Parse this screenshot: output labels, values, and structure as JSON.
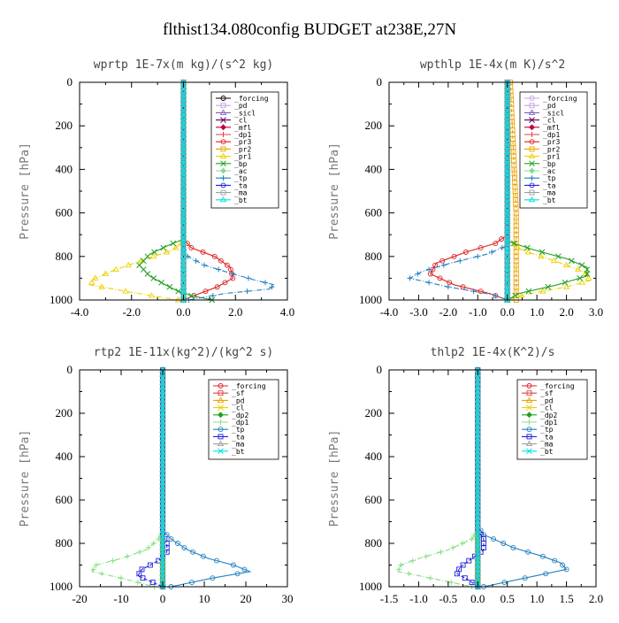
{
  "figure": {
    "title": "flthist134.080config  BUDGET at238E,27N"
  },
  "chart_data": [
    {
      "type": "line",
      "title": "wprtp  1E-7x(m kg)/(s^2 kg)",
      "ylabel": "Pressure [hPa]",
      "xlim": [
        -4.0,
        4.0
      ],
      "ylim": [
        1000,
        0
      ],
      "xticks": [
        "-4.0",
        "-2.0",
        "0.0",
        "2.0",
        "4.0"
      ],
      "yticks": [
        "0",
        "200",
        "400",
        "600",
        "800",
        "1000"
      ],
      "series": [
        {
          "name": "_forcing",
          "color": "#000000",
          "x": [
            0,
            0
          ],
          "y": [
            0,
            1000
          ]
        },
        {
          "name": "_pd",
          "color": "#c8a0e0",
          "x": [
            0,
            0
          ],
          "y": [
            0,
            1000
          ]
        },
        {
          "name": "_sicl",
          "color": "#8060c0",
          "x": [
            0,
            0
          ],
          "y": [
            0,
            1000
          ]
        },
        {
          "name": "_cl",
          "color": "#600060",
          "x": [
            0,
            0
          ],
          "y": [
            0,
            1000
          ]
        },
        {
          "name": "_mfl",
          "color": "#c00040",
          "x": [
            0,
            0
          ],
          "y": [
            0,
            1000
          ]
        },
        {
          "name": "_dp1",
          "color": "#e04040",
          "x": [
            0,
            0
          ],
          "y": [
            0,
            1000
          ]
        },
        {
          "name": "_pr3",
          "color": "#e02020",
          "x": [
            0,
            0,
            0.3,
            1.2,
            1.8,
            1.9,
            1.3,
            0.4,
            0
          ],
          "y": [
            0,
            720,
            760,
            800,
            850,
            900,
            940,
            980,
            1000
          ]
        },
        {
          "name": "_pr2",
          "color": "#f0a000",
          "x": [
            0,
            0
          ],
          "y": [
            0,
            1000
          ]
        },
        {
          "name": "_pr1",
          "color": "#f0d000",
          "x": [
            0,
            0,
            -0.4,
            -1.4,
            -2.6,
            -3.4,
            -3.6,
            -2.0,
            -0.2
          ],
          "y": [
            0,
            730,
            770,
            810,
            860,
            900,
            930,
            965,
            1000
          ]
        },
        {
          "name": "_bp",
          "color": "#20a020",
          "x": [
            0,
            0,
            -0.6,
            -1.3,
            -1.7,
            -1.3,
            -0.7,
            -0.2,
            0.3,
            1.1
          ],
          "y": [
            0,
            720,
            750,
            790,
            840,
            890,
            930,
            960,
            980,
            1000
          ]
        },
        {
          "name": "_ac",
          "color": "#80e080",
          "x": [
            0,
            0
          ],
          "y": [
            0,
            1000
          ]
        },
        {
          "name": "_tp",
          "color": "#2080c0",
          "x": [
            0,
            0,
            0.8,
            1.9,
            2.8,
            3.5,
            3.3,
            1.6,
            0.2
          ],
          "y": [
            0,
            790,
            840,
            880,
            910,
            930,
            950,
            970,
            1000
          ]
        },
        {
          "name": "_ta",
          "color": "#2020e0",
          "x": [
            0,
            0
          ],
          "y": [
            0,
            1000
          ]
        },
        {
          "name": "_ma",
          "color": "#a0a0a0",
          "x": [
            0,
            0
          ],
          "y": [
            0,
            1000
          ]
        },
        {
          "name": "_bt",
          "color": "#00e0e0",
          "x": [
            0,
            0
          ],
          "y": [
            0,
            1000
          ]
        }
      ]
    },
    {
      "type": "line",
      "title": "wpthlp  1E-4x(m K)/s^2",
      "ylabel": "Pressure [hPa]",
      "xlim": [
        -4.0,
        3.0
      ],
      "ylim": [
        1000,
        0
      ],
      "xticks": [
        "-4.0",
        "-3.0",
        "-2.0",
        "-1.0",
        "0.0",
        "1.0",
        "2.0",
        "3.0"
      ],
      "yticks": [
        "0",
        "200",
        "400",
        "600",
        "800",
        "1000"
      ],
      "series": [
        {
          "name": "_forcing",
          "color": "#c8a0e0",
          "x": [
            0,
            0
          ],
          "y": [
            0,
            1000
          ]
        },
        {
          "name": "_pd",
          "color": "#c8a0e0",
          "x": [
            0,
            0
          ],
          "y": [
            0,
            1000
          ]
        },
        {
          "name": "_sicl",
          "color": "#8060c0",
          "x": [
            0,
            0
          ],
          "y": [
            0,
            1000
          ]
        },
        {
          "name": "_cl",
          "color": "#600060",
          "x": [
            0,
            0
          ],
          "y": [
            0,
            1000
          ]
        },
        {
          "name": "_mfl",
          "color": "#c00040",
          "x": [
            0,
            0
          ],
          "y": [
            0,
            1000
          ]
        },
        {
          "name": "_dp1",
          "color": "#e04040",
          "x": [
            0,
            0
          ],
          "y": [
            0,
            1000
          ]
        },
        {
          "name": "_pr3",
          "color": "#e02020",
          "x": [
            0,
            0,
            -0.4,
            -1.4,
            -2.4,
            -2.6,
            -1.8,
            -0.6,
            0
          ],
          "y": [
            0,
            700,
            740,
            780,
            830,
            880,
            930,
            970,
            1000
          ]
        },
        {
          "name": "_pr2",
          "color": "#f0a000",
          "x": [
            0.1,
            0.2,
            0.3,
            0.3
          ],
          "y": [
            0,
            300,
            600,
            1000
          ]
        },
        {
          "name": "_pr1",
          "color": "#f0d000",
          "x": [
            0,
            0,
            0.7,
            1.8,
            2.6,
            2.8,
            2.0,
            0.6,
            0
          ],
          "y": [
            0,
            740,
            780,
            830,
            870,
            910,
            940,
            975,
            1000
          ]
        },
        {
          "name": "_bp",
          "color": "#20a020",
          "x": [
            0,
            0,
            0.9,
            2.0,
            2.7,
            2.7,
            1.7,
            0.4,
            0
          ],
          "y": [
            0,
            730,
            770,
            810,
            850,
            890,
            930,
            970,
            1000
          ]
        },
        {
          "name": "_ac",
          "color": "#80e080",
          "x": [
            0,
            0
          ],
          "y": [
            0,
            1000
          ]
        },
        {
          "name": "_tp",
          "color": "#2080c0",
          "x": [
            0,
            0,
            -0.7,
            -1.9,
            -2.9,
            -3.3,
            -2.0,
            -0.5,
            0
          ],
          "y": [
            0,
            750,
            790,
            830,
            870,
            900,
            940,
            975,
            1000
          ]
        },
        {
          "name": "_ta",
          "color": "#2020e0",
          "x": [
            0,
            0
          ],
          "y": [
            0,
            1000
          ]
        },
        {
          "name": "_ma",
          "color": "#a0a0a0",
          "x": [
            0,
            0
          ],
          "y": [
            0,
            1000
          ]
        },
        {
          "name": "_bt",
          "color": "#00e0e0",
          "x": [
            0,
            0
          ],
          "y": [
            0,
            1000
          ]
        }
      ]
    },
    {
      "type": "line",
      "title": "rtp2  1E-11x(kg^2)/(kg^2 s)",
      "ylabel": "Pressure [hPa]",
      "xlim": [
        -20,
        30
      ],
      "ylim": [
        1000,
        0
      ],
      "xticks": [
        "-20",
        "-10",
        "0",
        "10",
        "20",
        "30"
      ],
      "yticks": [
        "0",
        "200",
        "400",
        "600",
        "800",
        "1000"
      ],
      "series": [
        {
          "name": "_forcing",
          "color": "#e02020",
          "x": [
            0,
            0
          ],
          "y": [
            0,
            1000
          ]
        },
        {
          "name": "_sf",
          "color": "#e04040",
          "x": [
            0,
            0
          ],
          "y": [
            0,
            1000
          ]
        },
        {
          "name": "_pd",
          "color": "#f0a000",
          "x": [
            0,
            0
          ],
          "y": [
            0,
            1000
          ]
        },
        {
          "name": "_cl",
          "color": "#f0d000",
          "x": [
            0,
            0
          ],
          "y": [
            0,
            1000
          ]
        },
        {
          "name": "_dp2",
          "color": "#20a020",
          "x": [
            0,
            0
          ],
          "y": [
            0,
            1000
          ]
        },
        {
          "name": "_dp1",
          "color": "#80e080",
          "x": [
            0,
            0,
            -1,
            -4,
            -10,
            -16,
            -17,
            -10,
            -2
          ],
          "y": [
            0,
            740,
            780,
            830,
            870,
            900,
            930,
            960,
            1000
          ]
        },
        {
          "name": "_tp",
          "color": "#2080c0",
          "x": [
            0,
            0,
            2,
            6,
            11,
            17,
            21,
            12,
            2
          ],
          "y": [
            0,
            740,
            780,
            830,
            870,
            900,
            930,
            960,
            1000
          ]
        },
        {
          "name": "_ta",
          "color": "#2020e0",
          "x": [
            0,
            0,
            1,
            1,
            -1,
            -5,
            -6,
            -3,
            0
          ],
          "y": [
            0,
            760,
            800,
            840,
            880,
            920,
            950,
            975,
            1000
          ]
        },
        {
          "name": "_ma",
          "color": "#a0a0a0",
          "x": [
            0,
            0
          ],
          "y": [
            0,
            1000
          ]
        },
        {
          "name": "_bt",
          "color": "#00e0e0",
          "x": [
            0,
            0
          ],
          "y": [
            0,
            1000
          ]
        }
      ]
    },
    {
      "type": "line",
      "title": "thlp2  1E-4x(K^2)/s",
      "ylabel": "Pressure [hPa]",
      "xlim": [
        -1.5,
        2.0
      ],
      "ylim": [
        1000,
        0
      ],
      "xticks": [
        "-1.5",
        "-1.0",
        "-0.5",
        "0.0",
        "0.5",
        "1.0",
        "1.5",
        "2.0"
      ],
      "yticks": [
        "0",
        "200",
        "400",
        "600",
        "800",
        "1000"
      ],
      "series": [
        {
          "name": "_forcing",
          "color": "#e02020",
          "x": [
            0,
            0
          ],
          "y": [
            0,
            1000
          ]
        },
        {
          "name": "_sf",
          "color": "#e04040",
          "x": [
            0,
            0
          ],
          "y": [
            0,
            1000
          ]
        },
        {
          "name": "_pd",
          "color": "#f0a000",
          "x": [
            0,
            0
          ],
          "y": [
            0,
            1000
          ]
        },
        {
          "name": "_cl",
          "color": "#f0d000",
          "x": [
            0,
            0
          ],
          "y": [
            0,
            1000
          ]
        },
        {
          "name": "_dp2",
          "color": "#20a020",
          "x": [
            0,
            0
          ],
          "y": [
            0,
            1000
          ]
        },
        {
          "name": "_dp1",
          "color": "#80e080",
          "x": [
            0,
            0,
            -0.1,
            -0.5,
            -1.0,
            -1.3,
            -1.35,
            -0.8,
            -0.1
          ],
          "y": [
            0,
            740,
            780,
            830,
            870,
            900,
            930,
            960,
            1000
          ]
        },
        {
          "name": "_tp",
          "color": "#2080c0",
          "x": [
            0,
            0,
            0.1,
            0.6,
            1.1,
            1.4,
            1.5,
            0.8,
            0.1
          ],
          "y": [
            0,
            720,
            760,
            820,
            860,
            890,
            920,
            960,
            1000
          ]
        },
        {
          "name": "_ta",
          "color": "#2020e0",
          "x": [
            0,
            0,
            0.1,
            0.1,
            -0.1,
            -0.3,
            -0.35,
            -0.15,
            0
          ],
          "y": [
            0,
            740,
            780,
            830,
            870,
            910,
            940,
            970,
            1000
          ]
        },
        {
          "name": "_ma",
          "color": "#a0a0a0",
          "x": [
            0,
            0
          ],
          "y": [
            0,
            1000
          ]
        },
        {
          "name": "_bt",
          "color": "#00e0e0",
          "x": [
            0,
            0
          ],
          "y": [
            0,
            1000
          ]
        }
      ]
    }
  ]
}
